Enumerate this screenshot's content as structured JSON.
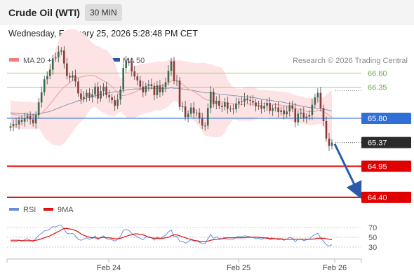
{
  "header": {
    "title": "Crude Oil (WTI)",
    "timeframe": "30 MIN",
    "datetime": "Wednesday, February 25, 2026 5:28:48 PM CET"
  },
  "legend": {
    "ma20": "MA 20 + Bollinger Bands",
    "ma50": "MA 50",
    "credit": "Research © 2026 Trading Central",
    "rsi": "RSI",
    "rsi_ma": "9MA"
  },
  "colors": {
    "ma20": "#f08080",
    "ma50": "#2c5aa0",
    "band": "#fde3e3",
    "candle_up": "#3a6e4e",
    "candle_down": "#8b3a3a",
    "green_level": "#9ad37c",
    "red_level": "#e00000",
    "blue_level": "#2f6fd6",
    "arrow": "#2a5aa8",
    "rsi": "#6a8fd8",
    "rsi_ma": "#e01010"
  },
  "chart_data": {
    "type": "candlestick",
    "instrument": "Crude Oil (WTI)",
    "interval": "30 MIN",
    "y_range": [
      64.3,
      67.15
    ],
    "x_ticks": [
      "Feb 24",
      "Feb 25",
      "Feb 26"
    ],
    "levels": [
      {
        "value": 66.6,
        "label": "66.60",
        "kind": "resistance"
      },
      {
        "value": 66.35,
        "label": "66.35",
        "kind": "resistance"
      },
      {
        "value": 65.8,
        "label": "65.80",
        "kind": "pivot"
      },
      {
        "value": 65.37,
        "label": "65.37",
        "kind": "last_price"
      },
      {
        "value": 64.95,
        "label": "64.95",
        "kind": "support"
      },
      {
        "value": 64.4,
        "label": "64.40",
        "kind": "support"
      }
    ],
    "projection": {
      "from": 65.37,
      "to": 64.4
    },
    "close": [
      65.66,
      65.7,
      65.69,
      65.77,
      65.74,
      65.8,
      65.84,
      65.78,
      65.71,
      65.86,
      66.08,
      66.26,
      66.49,
      66.55,
      66.66,
      66.86,
      66.88,
      66.98,
      67.0,
      66.77,
      66.55,
      66.52,
      66.56,
      66.45,
      66.24,
      66.14,
      66.18,
      66.25,
      66.17,
      66.22,
      66.36,
      66.15,
      66.28,
      66.36,
      66.21,
      66.17,
      66.12,
      66.02,
      66.13,
      66.31,
      66.69,
      66.8,
      66.79,
      66.63,
      66.54,
      66.47,
      66.36,
      66.26,
      66.37,
      66.4,
      66.37,
      66.21,
      66.38,
      66.26,
      66.35,
      66.44,
      66.64,
      66.81,
      66.46,
      66.47,
      66.0,
      66.01,
      65.82,
      65.88,
      65.99,
      65.89,
      65.9,
      65.8,
      65.67,
      65.67,
      65.98,
      66.27,
      66.05,
      66.11,
      66.02,
      66.0,
      66.08,
      65.97,
      65.97,
      65.96,
      66.06,
      66.1,
      66.09,
      66.15,
      66.12,
      66.11,
      66.08,
      66.01,
      66.03,
      65.97,
      66.02,
      66.07,
      65.93,
      65.98,
      65.99,
      65.91,
      65.94,
      65.87,
      65.92,
      66.03,
      65.97,
      65.73,
      65.88,
      65.9,
      65.8,
      65.83,
      65.86,
      66.04,
      66.17,
      66.25,
      65.98,
      65.75,
      65.44,
      65.31,
      65.37
    ],
    "ma20": [
      65.88,
      65.87,
      65.86,
      65.86,
      65.85,
      65.85,
      65.85,
      65.85,
      65.84,
      65.84,
      65.86,
      65.89,
      65.94,
      65.99,
      66.05,
      66.11,
      66.18,
      66.24,
      66.3,
      66.35,
      66.39,
      66.43,
      66.47,
      66.5,
      66.52,
      66.53,
      66.54,
      66.55,
      66.56,
      66.56,
      66.55,
      66.52,
      66.49,
      66.46,
      66.44,
      66.4,
      66.36,
      66.31,
      66.25,
      66.21,
      66.2,
      66.21,
      66.23,
      66.24,
      66.26,
      66.29,
      66.31,
      66.32,
      66.33,
      66.34,
      66.35,
      66.36,
      66.37,
      66.37,
      66.38,
      66.39,
      66.42,
      66.46,
      66.47,
      66.46,
      66.43,
      66.4,
      66.36,
      66.32,
      66.3,
      66.27,
      66.24,
      66.21,
      66.17,
      66.14,
      66.12,
      66.12,
      66.1,
      66.09,
      66.09,
      66.09,
      66.08,
      66.07,
      66.06,
      66.06,
      66.05,
      66.04,
      66.04,
      66.05,
      66.05,
      66.05,
      66.05,
      66.06,
      66.06,
      66.06,
      66.06,
      66.06,
      66.05,
      66.05,
      66.04,
      66.04,
      66.03,
      66.02,
      66.02,
      66.01,
      65.99,
      65.97,
      65.96,
      65.95,
      65.94,
      65.92,
      65.92,
      65.92,
      65.92,
      65.94,
      65.94,
      65.92,
      65.89,
      65.85,
      65.82
    ],
    "ma50": [
      65.9,
      65.89,
      65.89,
      65.88,
      65.88,
      65.88,
      65.87,
      65.87,
      65.87,
      65.87,
      65.88,
      65.89,
      65.9,
      65.91,
      65.92,
      65.94,
      65.96,
      65.98,
      66.0,
      66.02,
      66.04,
      66.06,
      66.07,
      66.09,
      66.11,
      66.12,
      66.14,
      66.16,
      66.17,
      66.18,
      66.2,
      66.21,
      66.22,
      66.23,
      66.24,
      66.25,
      66.26,
      66.27,
      66.27,
      66.28,
      66.29,
      66.3,
      66.31,
      66.31,
      66.32,
      66.32,
      66.32,
      66.33,
      66.33,
      66.33,
      66.33,
      66.33,
      66.33,
      66.33,
      66.33,
      66.33,
      66.33,
      66.34,
      66.33,
      66.33,
      66.32,
      66.32,
      66.31,
      66.3,
      66.3,
      66.29,
      66.28,
      66.27,
      66.26,
      66.25,
      66.25,
      66.25,
      66.24,
      66.23,
      66.23,
      66.22,
      66.22,
      66.21,
      66.21,
      66.2,
      66.2,
      66.19,
      66.19,
      66.18,
      66.18,
      66.17,
      66.17,
      66.16,
      66.15,
      66.14,
      66.13,
      66.12,
      66.12,
      66.11,
      66.1,
      66.1,
      66.09,
      66.08,
      66.07,
      66.06,
      66.05,
      66.04,
      66.03,
      66.02,
      66.01,
      66.0,
      65.99,
      65.99,
      65.98,
      65.97,
      65.97,
      65.96,
      65.95,
      65.94,
      65.93
    ],
    "rsi": {
      "ticks": [
        70,
        50,
        30
      ],
      "range": [
        20,
        80
      ],
      "rsi": [
        40,
        42,
        41,
        44,
        42,
        45,
        47,
        44,
        41,
        48,
        54,
        58,
        63,
        64,
        67,
        72,
        71,
        74,
        75,
        66,
        58,
        57,
        58,
        53,
        46,
        44,
        46,
        49,
        46,
        48,
        53,
        45,
        50,
        53,
        47,
        46,
        45,
        42,
        46,
        52,
        64,
        66,
        64,
        58,
        54,
        51,
        48,
        45,
        50,
        51,
        49,
        44,
        51,
        47,
        51,
        54,
        61,
        65,
        52,
        52,
        42,
        42,
        38,
        41,
        45,
        42,
        43,
        40,
        37,
        37,
        47,
        56,
        48,
        51,
        48,
        47,
        50,
        46,
        46,
        46,
        50,
        52,
        51,
        53,
        52,
        51,
        50,
        47,
        48,
        46,
        48,
        50,
        45,
        47,
        47,
        45,
        46,
        44,
        46,
        50,
        48,
        41,
        46,
        47,
        43,
        45,
        46,
        52,
        56,
        58,
        49,
        42,
        35,
        32,
        35
      ],
      "ma9": [
        44,
        44,
        44,
        44,
        43,
        43,
        43,
        43,
        43,
        44,
        45,
        47,
        49,
        51,
        53,
        56,
        59,
        62,
        65,
        68,
        68,
        67,
        66,
        64,
        61,
        57,
        54,
        52,
        50,
        49,
        49,
        48,
        49,
        50,
        49,
        49,
        48,
        47,
        47,
        48,
        50,
        52,
        54,
        55,
        57,
        57,
        56,
        55,
        53,
        50,
        49,
        48,
        48,
        48,
        48,
        49,
        50,
        53,
        55,
        55,
        53,
        51,
        49,
        47,
        46,
        44,
        43,
        42,
        41,
        41,
        42,
        44,
        45,
        46,
        46,
        47,
        48,
        49,
        49,
        49,
        49,
        49,
        49,
        49,
        50,
        50,
        50,
        50,
        50,
        49,
        49,
        48,
        48,
        48,
        47,
        47,
        47,
        46,
        46,
        46,
        46,
        46,
        46,
        46,
        46,
        46,
        46,
        46,
        47,
        48,
        48,
        48,
        47,
        46,
        45
      ]
    }
  }
}
